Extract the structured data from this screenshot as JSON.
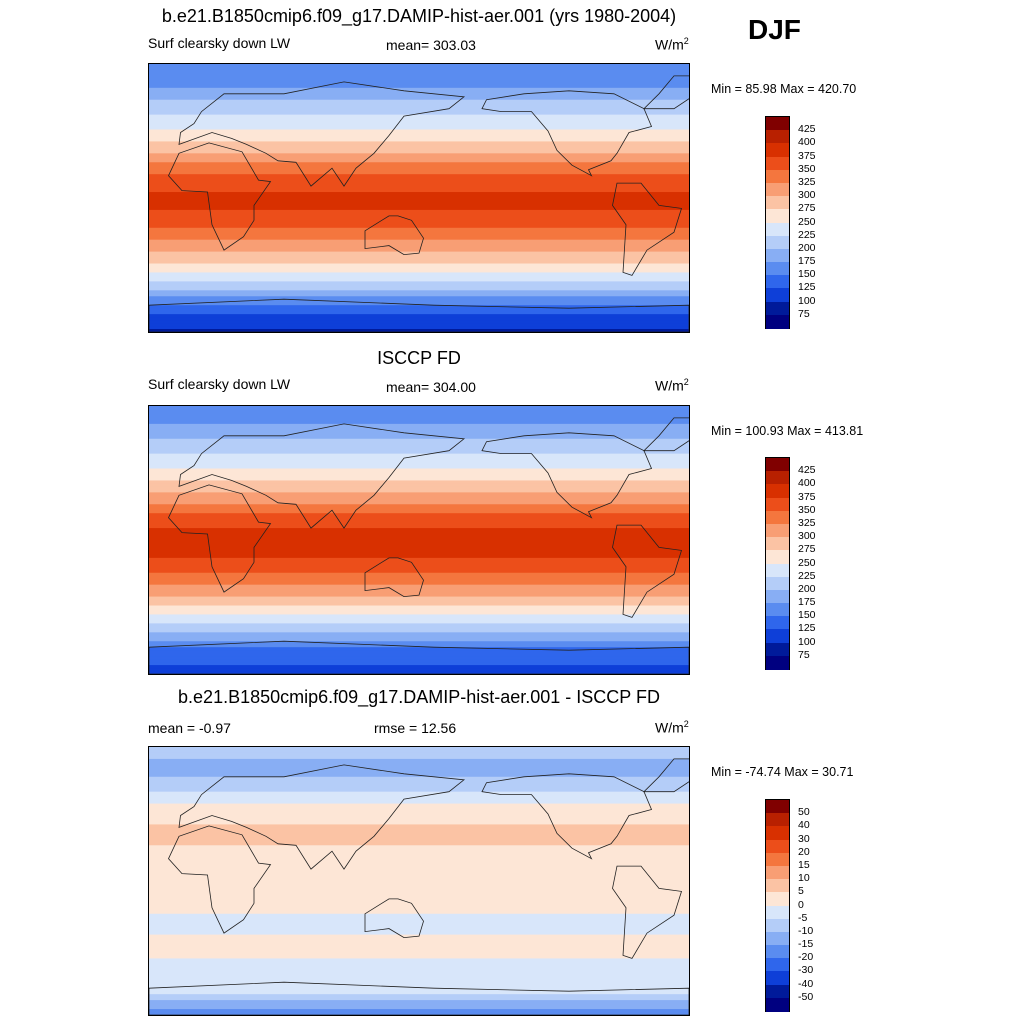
{
  "season": "DJF",
  "chart_data": [
    {
      "type": "heatmap",
      "title": "b.e21.B1850cmip6.f09_g17.DAMIP-hist-aer.001 (yrs 1980-2004)",
      "left_label": "Surf clearsky down LW",
      "mean_text": "mean= 303.03",
      "units_base": "W/m",
      "units_exp": "2",
      "minmax_text": "Min =  85.98 Max = 420.70",
      "mean": 303.03,
      "min": 85.98,
      "max": 420.7,
      "colorbar_levels": [
        "425",
        "400",
        "375",
        "350",
        "325",
        "300",
        "275",
        "250",
        "225",
        "200",
        "175",
        "150",
        "125",
        "100",
        "75"
      ],
      "zonal_profile": {
        "lat": [
          90,
          75,
          60,
          45,
          30,
          15,
          0,
          -15,
          -30,
          -45,
          -60,
          -75,
          -90
        ],
        "value": [
          155,
          175,
          215,
          255,
          300,
          355,
          385,
          365,
          320,
          270,
          205,
          135,
          95
        ]
      }
    },
    {
      "type": "heatmap",
      "title": "ISCCP FD",
      "left_label": "Surf clearsky down LW",
      "mean_text": "mean= 304.00",
      "units_base": "W/m",
      "units_exp": "2",
      "minmax_text": "Min = 100.93 Max = 413.81",
      "mean": 304.0,
      "min": 100.93,
      "max": 413.81,
      "colorbar_levels": [
        "425",
        "400",
        "375",
        "350",
        "325",
        "300",
        "275",
        "250",
        "225",
        "200",
        "175",
        "150",
        "125",
        "100",
        "75"
      ],
      "zonal_profile": {
        "lat": [
          90,
          75,
          60,
          45,
          30,
          15,
          0,
          -15,
          -30,
          -45,
          -60,
          -75,
          -90
        ],
        "value": [
          160,
          180,
          220,
          260,
          305,
          360,
          390,
          370,
          325,
          275,
          210,
          140,
          115
        ]
      }
    },
    {
      "type": "heatmap",
      "title": "b.e21.B1850cmip6.f09_g17.DAMIP-hist-aer.001 - ISCCP FD",
      "left_label": "mean =  -0.97",
      "mean_text": "rmse =  12.56",
      "units_base": "W/m",
      "units_exp": "2",
      "minmax_text": "Min = -74.74 Max =  30.71",
      "mean": -0.97,
      "rmse": 12.56,
      "min": -74.74,
      "max": 30.71,
      "colorbar_levels": [
        "50",
        "40",
        "30",
        "20",
        "15",
        "10",
        "5",
        "0",
        "-5",
        "-10",
        "-15",
        "-20",
        "-30",
        "-40",
        "-50"
      ],
      "zonal_profile": {
        "lat": [
          90,
          75,
          60,
          45,
          30,
          15,
          0,
          -15,
          -30,
          -45,
          -60,
          -75,
          -90
        ],
        "value": [
          -8,
          -12,
          -5,
          4,
          6,
          3,
          4,
          2,
          -2,
          3,
          -4,
          -5,
          -18
        ]
      }
    }
  ],
  "colors": {
    "abs_palette": [
      "#800000",
      "#b82000",
      "#d83000",
      "#ec4e1a",
      "#f4763e",
      "#f89e74",
      "#fbc3a4",
      "#fde6d6",
      "#d8e6fa",
      "#b4cdf8",
      "#88aef4",
      "#5a8cf0",
      "#2f66ec",
      "#0e3fd8",
      "#001a9a",
      "#000080"
    ],
    "diff_palette": [
      "#800000",
      "#b82000",
      "#d83000",
      "#ec4e1a",
      "#f4763e",
      "#f89e74",
      "#fbc3a4",
      "#fde6d6",
      "#d8e6fa",
      "#b4cdf8",
      "#88aef4",
      "#5a8cf0",
      "#2f66ec",
      "#0e3fd8",
      "#001a9a",
      "#000080"
    ]
  }
}
